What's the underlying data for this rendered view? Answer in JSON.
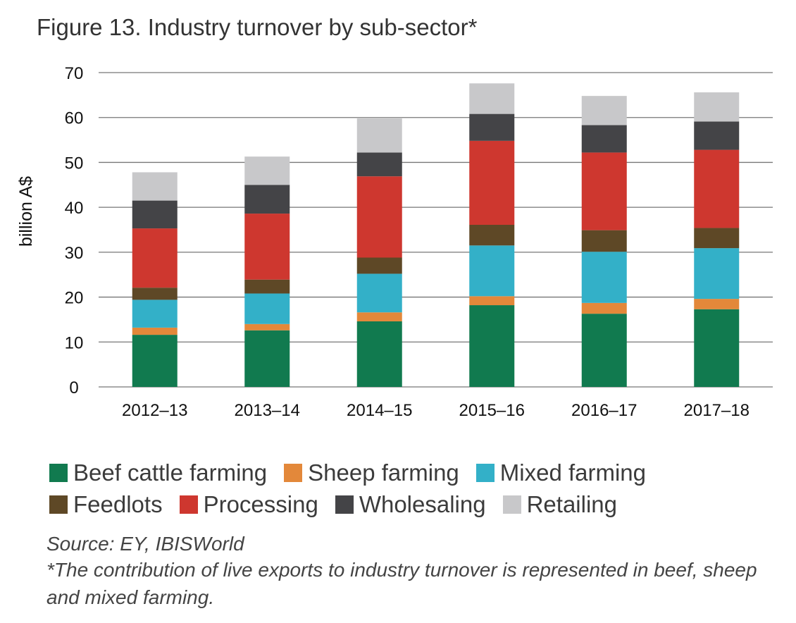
{
  "title": "Figure 13. Industry turnover by sub-sector*",
  "source": "Source: EY, IBISWorld",
  "note": "*The contribution of live exports to industry turnover is represented in beef, sheep and mixed farming.",
  "chart_data": {
    "type": "bar",
    "stacked": true,
    "title": "Figure 13. Industry turnover by sub-sector*",
    "xlabel": "",
    "ylabel": "billion A$",
    "ylim": [
      0,
      70
    ],
    "yticks": [
      0,
      10,
      20,
      30,
      40,
      50,
      60,
      70
    ],
    "grid": true,
    "legend_position": "bottom",
    "categories": [
      "2012–13",
      "2013–14",
      "2014–15",
      "2015–16",
      "2016–17",
      "2017–18"
    ],
    "series": [
      {
        "name": "Beef cattle farming",
        "color": "#117a4f",
        "values": [
          11.6,
          12.6,
          14.6,
          18.2,
          16.3,
          17.3
        ]
      },
      {
        "name": "Sheep farming",
        "color": "#e3883a",
        "values": [
          1.6,
          1.4,
          2.0,
          2.0,
          2.4,
          2.3
        ]
      },
      {
        "name": "Mixed farming",
        "color": "#33b0c8",
        "values": [
          6.2,
          6.8,
          8.6,
          11.3,
          11.4,
          11.3
        ]
      },
      {
        "name": "Feedlots",
        "color": "#5e4826",
        "values": [
          2.7,
          3.1,
          3.6,
          4.6,
          4.8,
          4.5
        ]
      },
      {
        "name": "Processing",
        "color": "#ce372f",
        "values": [
          13.2,
          14.7,
          18.1,
          18.7,
          17.3,
          17.4
        ]
      },
      {
        "name": "Wholesaling",
        "color": "#444447",
        "values": [
          6.2,
          6.4,
          5.3,
          6.0,
          6.1,
          6.3
        ]
      },
      {
        "name": "Retailing",
        "color": "#c8c8ca",
        "values": [
          6.3,
          6.3,
          7.6,
          6.8,
          6.5,
          6.5
        ]
      }
    ]
  }
}
